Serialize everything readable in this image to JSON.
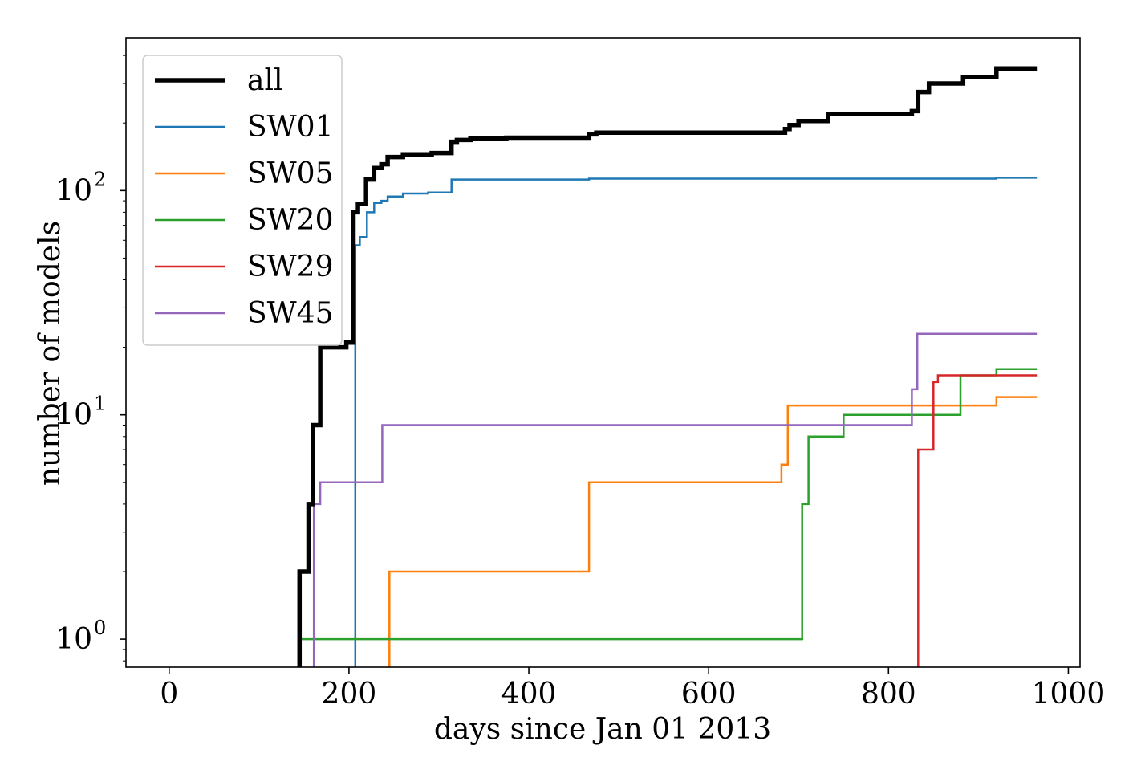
{
  "chart_data": {
    "type": "line",
    "step": "post",
    "xlabel": "days since Jan 01 2013",
    "ylabel": "number of models",
    "yscale": "log",
    "xlim": [
      -48,
      1013
    ],
    "ylim": [
      0.75,
      480
    ],
    "x_ticks": [
      0,
      200,
      400,
      600,
      800,
      1000
    ],
    "x_tick_labels": [
      "0",
      "200",
      "400",
      "600",
      "800",
      "1000"
    ],
    "y_ticks": [
      1,
      10,
      100
    ],
    "y_tick_labels": [
      {
        "base": "10",
        "exp": "0"
      },
      {
        "base": "10",
        "exp": "1"
      },
      {
        "base": "10",
        "exp": "2"
      }
    ],
    "grid": false,
    "legend_position": "upper left",
    "series": [
      {
        "name": "all",
        "color": "#000000",
        "emphasis": "thick",
        "points": [
          [
            145,
            0.6
          ],
          [
            145,
            2
          ],
          [
            155,
            2
          ],
          [
            155,
            4
          ],
          [
            160,
            4
          ],
          [
            160,
            9
          ],
          [
            168,
            9
          ],
          [
            168,
            20
          ],
          [
            197,
            20
          ],
          [
            197,
            21
          ],
          [
            205,
            21
          ],
          [
            205,
            80
          ],
          [
            210,
            80
          ],
          [
            210,
            87
          ],
          [
            219,
            87
          ],
          [
            219,
            112
          ],
          [
            228,
            112
          ],
          [
            228,
            126
          ],
          [
            236,
            126
          ],
          [
            236,
            131
          ],
          [
            243,
            131
          ],
          [
            243,
            141
          ],
          [
            260,
            141
          ],
          [
            260,
            145
          ],
          [
            292,
            145
          ],
          [
            292,
            147
          ],
          [
            314,
            147
          ],
          [
            314,
            165
          ],
          [
            320,
            165
          ],
          [
            320,
            168
          ],
          [
            335,
            168
          ],
          [
            335,
            171
          ],
          [
            375,
            171
          ],
          [
            375,
            172
          ],
          [
            467,
            172
          ],
          [
            467,
            178
          ],
          [
            475,
            178
          ],
          [
            475,
            181
          ],
          [
            685,
            181
          ],
          [
            685,
            188
          ],
          [
            690,
            188
          ],
          [
            690,
            196
          ],
          [
            700,
            196
          ],
          [
            700,
            204
          ],
          [
            733,
            204
          ],
          [
            733,
            220
          ],
          [
            826,
            220
          ],
          [
            826,
            226
          ],
          [
            833,
            226
          ],
          [
            833,
            275
          ],
          [
            845,
            275
          ],
          [
            845,
            300
          ],
          [
            883,
            300
          ],
          [
            883,
            320
          ],
          [
            920,
            320
          ],
          [
            920,
            350
          ],
          [
            965,
            350
          ]
        ]
      },
      {
        "name": "SW01",
        "color": "#1f77b4",
        "emphasis": "normal",
        "points": [
          [
            207,
            0.6
          ],
          [
            207,
            1
          ],
          [
            207,
            57
          ],
          [
            212,
            57
          ],
          [
            212,
            62
          ],
          [
            220,
            62
          ],
          [
            220,
            80
          ],
          [
            228,
            80
          ],
          [
            228,
            88
          ],
          [
            236,
            88
          ],
          [
            236,
            90
          ],
          [
            243,
            90
          ],
          [
            243,
            94
          ],
          [
            260,
            94
          ],
          [
            260,
            97
          ],
          [
            288,
            97
          ],
          [
            288,
            98
          ],
          [
            314,
            98
          ],
          [
            314,
            112
          ],
          [
            467,
            112
          ],
          [
            467,
            113
          ],
          [
            920,
            113
          ],
          [
            920,
            114
          ],
          [
            965,
            114
          ]
        ]
      },
      {
        "name": "SW05",
        "color": "#ff7f0e",
        "emphasis": "normal",
        "points": [
          [
            245,
            0.6
          ],
          [
            245,
            2
          ],
          [
            467,
            2
          ],
          [
            467,
            5
          ],
          [
            681,
            5
          ],
          [
            681,
            6
          ],
          [
            688,
            6
          ],
          [
            688,
            11
          ],
          [
            920,
            11
          ],
          [
            920,
            12
          ],
          [
            965,
            12
          ]
        ]
      },
      {
        "name": "SW20",
        "color": "#2ca02c",
        "emphasis": "normal",
        "points": [
          [
            146,
            0.6
          ],
          [
            146,
            1
          ],
          [
            704,
            1
          ],
          [
            704,
            4
          ],
          [
            711,
            4
          ],
          [
            711,
            8
          ],
          [
            750,
            8
          ],
          [
            750,
            10
          ],
          [
            880,
            10
          ],
          [
            880,
            15
          ],
          [
            920,
            15
          ],
          [
            920,
            16
          ],
          [
            965,
            16
          ]
        ]
      },
      {
        "name": "SW29",
        "color": "#d62728",
        "emphasis": "normal",
        "points": [
          [
            833,
            0.6
          ],
          [
            833,
            7
          ],
          [
            850,
            7
          ],
          [
            850,
            14
          ],
          [
            855,
            14
          ],
          [
            855,
            15
          ],
          [
            965,
            15
          ]
        ]
      },
      {
        "name": "SW45",
        "color": "#9467bd",
        "emphasis": "normal",
        "points": [
          [
            161,
            0.6
          ],
          [
            161,
            4
          ],
          [
            168,
            4
          ],
          [
            168,
            5
          ],
          [
            237,
            5
          ],
          [
            237,
            9
          ],
          [
            826,
            9
          ],
          [
            826,
            13
          ],
          [
            832,
            13
          ],
          [
            832,
            23
          ],
          [
            965,
            23
          ]
        ]
      }
    ]
  }
}
